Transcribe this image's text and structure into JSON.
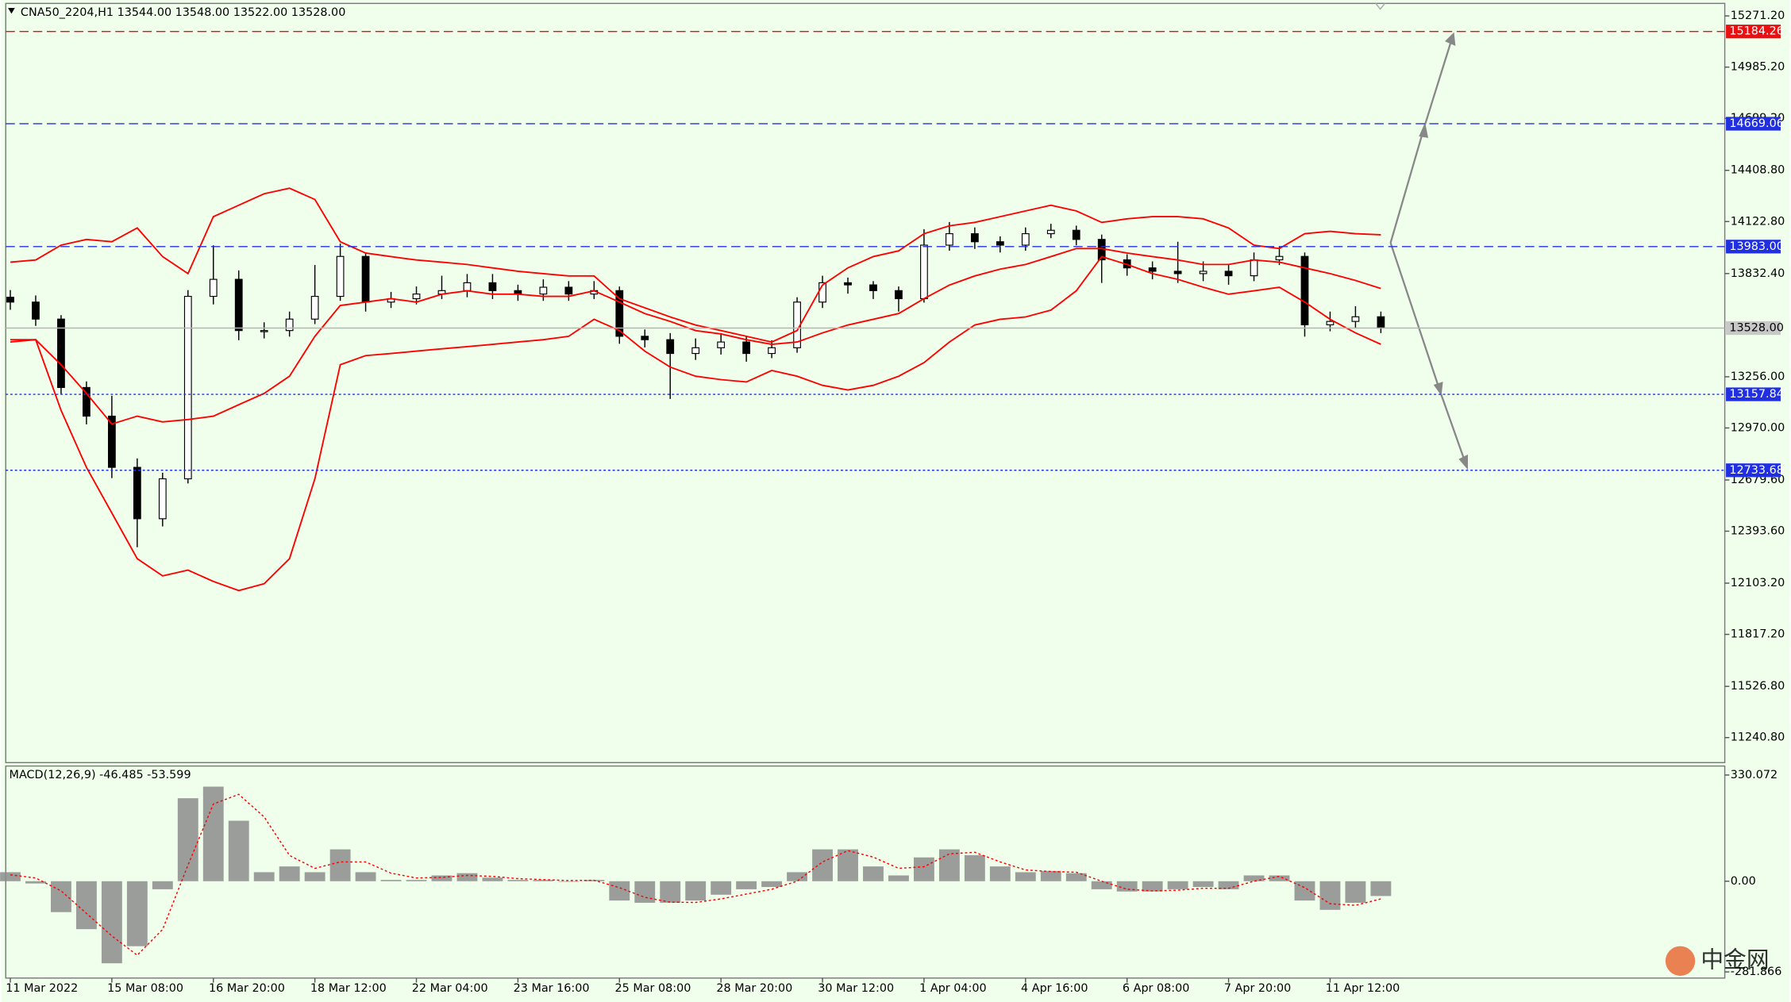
{
  "chart_data": [
    {
      "type": "candlestick",
      "title": "CNA50_2204,H1  13544.00 13548.00 13522.00 13528.00",
      "categories": [
        "11 Mar 2022",
        null,
        null,
        null,
        "15 Mar 08:00",
        null,
        null,
        null,
        "16 Mar 20:00",
        null,
        null,
        null,
        "18 Mar 12:00",
        null,
        null,
        null,
        "22 Mar 04:00",
        null,
        null,
        null,
        "23 Mar 16:00",
        null,
        null,
        null,
        "25 Mar 08:00",
        null,
        null,
        null,
        "28 Mar 20:00",
        null,
        null,
        null,
        "30 Mar 12:00",
        null,
        null,
        null,
        "1 Apr 04:00",
        null,
        null,
        null,
        "4 Apr 16:00",
        null,
        null,
        null,
        "6 Apr 08:00",
        null,
        null,
        null,
        "7 Apr 20:00",
        null,
        null,
        null,
        "11 Apr 12:00",
        null,
        null
      ],
      "open": [
        13700,
        13673,
        13578,
        13196,
        13036,
        12750,
        12463,
        12686,
        13705,
        13800,
        13514,
        13514,
        13578,
        13705,
        13928,
        13673,
        13692,
        13718,
        13737,
        13781,
        13737,
        13718,
        13756,
        13718,
        13737,
        13482,
        13463,
        13386,
        13418,
        13450,
        13386,
        13418,
        13673,
        13781,
        13769,
        13737,
        13692,
        13991,
        14055,
        14010,
        13991,
        14055,
        14074,
        14023,
        13909,
        13864,
        13845,
        13832,
        13845,
        13820,
        13909,
        13928,
        13546,
        13565,
        13591
      ],
      "high": [
        13740,
        13710,
        13600,
        13230,
        13150,
        12800,
        12720,
        13740,
        13990,
        13850,
        13560,
        13620,
        13880,
        14000,
        13950,
        13730,
        13760,
        13820,
        13830,
        13830,
        13770,
        13800,
        13790,
        13790,
        13760,
        13520,
        13500,
        13470,
        13500,
        13480,
        13460,
        13700,
        13820,
        13810,
        13790,
        13760,
        14080,
        14120,
        14090,
        14040,
        14090,
        14110,
        14100,
        14050,
        13940,
        13900,
        14010,
        13900,
        13880,
        13950,
        13980,
        13950,
        13620,
        13650,
        13620
      ],
      "low": [
        13630,
        13540,
        13160,
        12990,
        12690,
        12304,
        12420,
        12660,
        13660,
        13460,
        13470,
        13480,
        13550,
        13680,
        13620,
        13640,
        13660,
        13690,
        13700,
        13690,
        13680,
        13680,
        13680,
        13690,
        13440,
        13420,
        13132,
        13350,
        13380,
        13340,
        13360,
        13390,
        13640,
        13720,
        13690,
        13620,
        13670,
        13960,
        13970,
        13950,
        13960,
        14030,
        13990,
        13780,
        13820,
        13800,
        13780,
        13790,
        13770,
        13790,
        13880,
        13480,
        13510,
        13530,
        13500
      ],
      "close": [
        13673,
        13578,
        13196,
        13036,
        12750,
        12463,
        12686,
        13705,
        13800,
        13514,
        13514,
        13578,
        13705,
        13928,
        13673,
        13692,
        13718,
        13737,
        13781,
        13737,
        13718,
        13756,
        13718,
        13737,
        13482,
        13463,
        13386,
        13418,
        13450,
        13386,
        13418,
        13673,
        13781,
        13769,
        13737,
        13692,
        13991,
        14055,
        14010,
        13991,
        14055,
        14074,
        14023,
        13909,
        13864,
        13845,
        13832,
        13845,
        13820,
        13909,
        13928,
        13546,
        13565,
        13591,
        13528
      ],
      "series": [
        {
          "color": "#ff0000",
          "values": [
            13896,
            13908,
            13991,
            14023,
            14010,
            14087,
            13927,
            13832,
            14150,
            14214,
            14278,
            14309,
            14246,
            14010,
            13947,
            13927,
            13908,
            13896,
            13883,
            13864,
            13845,
            13832,
            13819,
            13819,
            13692,
            13641,
            13590,
            13545,
            13514,
            13482,
            13450,
            13514,
            13768,
            13864,
            13927,
            13959,
            14055,
            14099,
            14118,
            14150,
            14182,
            14214,
            14182,
            14118,
            14138,
            14150,
            14150,
            14138,
            14087,
            13991,
            13972,
            14055,
            14068,
            14055,
            14049
          ]
        },
        {
          "color": "#ff0000",
          "values": [
            13463,
            13463,
            13323,
            13163,
            12992,
            13036,
            13004,
            13017,
            13036,
            13100,
            13163,
            13259,
            13482,
            13654,
            13673,
            13692,
            13673,
            13717,
            13736,
            13717,
            13717,
            13705,
            13705,
            13736,
            13673,
            13609,
            13565,
            13514,
            13495,
            13463,
            13437,
            13450,
            13501,
            13545,
            13577,
            13609,
            13692,
            13768,
            13819,
            13857,
            13883,
            13927,
            13972,
            13972,
            13947,
            13927,
            13908,
            13883,
            13883,
            13908,
            13896,
            13864,
            13832,
            13794,
            13749
          ]
        },
        {
          "color": "#ff0000",
          "values": [
            13450,
            13463,
            13068,
            12750,
            12495,
            12240,
            12144,
            12176,
            12113,
            12062,
            12100,
            12240,
            12686,
            13323,
            13374,
            13386,
            13399,
            13412,
            13424,
            13437,
            13450,
            13463,
            13482,
            13577,
            13514,
            13399,
            13310,
            13259,
            13240,
            13227,
            13291,
            13259,
            13208,
            13182,
            13208,
            13259,
            13335,
            13450,
            13545,
            13577,
            13590,
            13628,
            13736,
            13927,
            13883,
            13832,
            13800,
            13756,
            13717,
            13736,
            13756,
            13673,
            13577,
            13501,
            13437
          ]
        }
      ],
      "levels": [
        {
          "value": 15184.26,
          "color": "#e81010",
          "style": "dashed",
          "box": "#e81010",
          "text_color": "#ffffff"
        },
        {
          "value": 14669.06,
          "color": "#2030e0",
          "style": "dashed",
          "box": "#2030e0",
          "text_color": "#ffffff"
        },
        {
          "value": 13983,
          "label": "13983.00",
          "color": "#2030e0",
          "style": "dashed",
          "box": "#2030e0",
          "text_color": "#ffffff"
        },
        {
          "value": 13528,
          "label": "13528.00",
          "color": "#b4b4b4",
          "style": "solid",
          "box": "#c8c8c8",
          "text_color": "#000000"
        },
        {
          "value": 13157.84,
          "color": "#2030e0",
          "style": "dotted",
          "box": "#2030e0",
          "text_color": "#ffffff"
        },
        {
          "value": 12733.68,
          "color": "#2030e0",
          "style": "dotted",
          "box": "#2030e0",
          "text_color": "#ffffff"
        }
      ],
      "up_color": "#ffffff",
      "down_color": "#000000",
      "ylim": [
        11101,
        15341
      ],
      "yticks": [
        {
          "value": 15271.2,
          "label": "15271.20"
        },
        {
          "value": 14985.2,
          "label": "14985.20"
        },
        {
          "value": 14699.2,
          "label": "14699.20"
        },
        {
          "value": 14408.8,
          "label": "14408.80"
        },
        {
          "value": 14122.8,
          "label": "14122.80"
        },
        {
          "value": 13832.4,
          "label": "13832.40"
        },
        {
          "value": 13256,
          "label": "13256.00"
        },
        {
          "value": 12970,
          "label": "12970.00"
        },
        {
          "value": 12679.6,
          "label": "12679.60"
        },
        {
          "value": 12393.6,
          "label": "12393.60"
        },
        {
          "value": 12103.2,
          "label": "12103.20"
        },
        {
          "value": 11817.2,
          "label": "11817.20"
        },
        {
          "value": 11526.8,
          "label": "11526.80"
        },
        {
          "value": 11240.8,
          "label": "11240.80"
        }
      ]
    },
    {
      "type": "macd",
      "title": "MACD(12,26,9) -46.485 -53.599",
      "color": "#8c8c8c",
      "values": [
        28,
        -7,
        -96,
        -149,
        -255,
        -202,
        -25,
        258,
        294,
        188,
        28,
        46,
        28,
        99,
        28,
        4,
        4,
        18,
        25,
        11,
        4,
        4,
        0,
        4,
        -60,
        -67,
        -67,
        -60,
        -42,
        -25,
        -18,
        28,
        99,
        99,
        46,
        18,
        74,
        99,
        81,
        46,
        28,
        32,
        25,
        -25,
        -32,
        -32,
        -25,
        -18,
        -25,
        18,
        18,
        -60,
        -89,
        -67,
        -46
      ],
      "signal": {
        "color": "#ff0000",
        "values": [
          20,
          10,
          -30,
          -100,
          -170,
          -230,
          -150,
          50,
          240,
          270,
          200,
          80,
          40,
          60,
          60,
          25,
          10,
          12,
          18,
          15,
          8,
          5,
          2,
          3,
          -20,
          -50,
          -65,
          -66,
          -55,
          -40,
          -25,
          0,
          60,
          95,
          75,
          40,
          45,
          85,
          90,
          60,
          35,
          30,
          28,
          0,
          -25,
          -30,
          -28,
          -22,
          -22,
          0,
          15,
          -20,
          -70,
          -75,
          -55
        ]
      },
      "ylim": [
        -301,
        358
      ],
      "yticks": [
        330.072,
        {
          "value": 0,
          "label": "0.00"
        },
        -281.866
      ]
    }
  ],
  "watermark": "中金网"
}
